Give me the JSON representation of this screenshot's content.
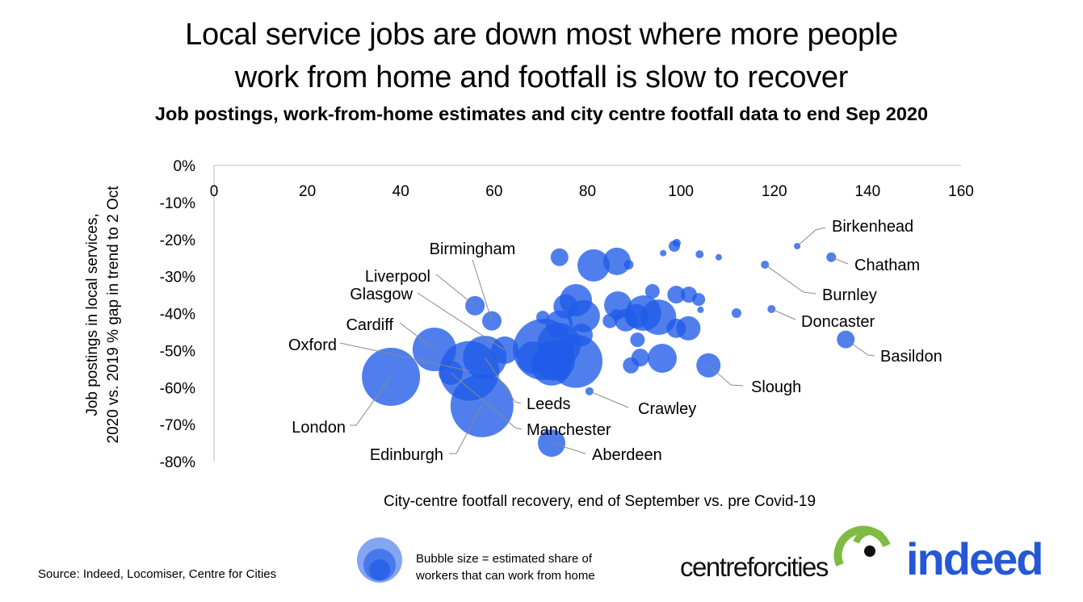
{
  "title_line1": "Local service jobs are down most where more people",
  "title_line2": "work from home and footfall is slow to recover",
  "subtitle": "Job postings, work-from-home estimates and city centre footfall data to end Sep 2020",
  "source": "Source: Indeed, Locomiser, Centre for Cities",
  "legend": {
    "line1": "Bubble size = estimated share of",
    "line2": "workers that can work from home"
  },
  "logos": {
    "centreforcities": "centreforcities",
    "indeed": "indeed"
  },
  "colors": {
    "bubble": "#1f5be8",
    "leader": "#8a8a8a",
    "cfc_green": "#7dbb42",
    "indeed_blue": "#2557d6"
  },
  "chart_data": {
    "type": "scatter",
    "subtype": "bubble",
    "xlabel": "City-centre footfall recovery, end of September vs. pre Covid-19",
    "ylabel_line1": "Job postings in local services,",
    "ylabel_line2": "2020 vs. 2019 % gap in trend to 2 Oct",
    "xlim": [
      0,
      160
    ],
    "ylim": [
      -80,
      0
    ],
    "xticks": [
      "0",
      "20",
      "40",
      "60",
      "80",
      "100",
      "120",
      "140",
      "160"
    ],
    "yticks": [
      "0%",
      "-10%",
      "-20%",
      "-30%",
      "-40%",
      "-50%",
      "-60%",
      "-70%",
      "-80%"
    ],
    "grid": false,
    "points": [
      {
        "name": "London",
        "x": 37.9,
        "y": -57.1,
        "size": 36
      },
      {
        "name": "Edinburgh",
        "x": 57.4,
        "y": -64.9,
        "size": 39
      },
      {
        "name": "Oxford",
        "x": 54.7,
        "y": -55.5,
        "size": 37
      },
      {
        "name": "Cardiff",
        "x": 47.2,
        "y": -49.7,
        "size": 27
      },
      {
        "name": "Manchester",
        "x": 50.7,
        "y": -56.0,
        "size": 15
      },
      {
        "name": "Leeds",
        "x": 58.0,
        "y": -51.9,
        "size": 27
      },
      {
        "name": "Glasgow",
        "x": 62.3,
        "y": -49.9,
        "size": 17
      },
      {
        "name": "Liverpool",
        "x": 55.9,
        "y": -37.9,
        "size": 12
      },
      {
        "name": "Birmingham",
        "x": 59.5,
        "y": -42.0,
        "size": 12
      },
      {
        "name": "Aberdeen",
        "x": 72.3,
        "y": -75.0,
        "size": 17
      },
      {
        "name": "Crawley",
        "x": 80.4,
        "y": -61.0,
        "size": 5
      },
      {
        "name": "Slough",
        "x": 105.9,
        "y": -54.0,
        "size": 15
      },
      {
        "name": "Basildon",
        "x": 135.3,
        "y": -47.0,
        "size": 11
      },
      {
        "name": "Doncaster",
        "x": 119.4,
        "y": -38.8,
        "size": 5
      },
      {
        "name": "Burnley",
        "x": 118.0,
        "y": -26.8,
        "size": 5
      },
      {
        "name": "Birkenhead",
        "x": 124.9,
        "y": -21.8,
        "size": 4
      },
      {
        "name": "Chatham",
        "x": 132.2,
        "y": -24.8,
        "size": 6
      },
      {
        "x": 74.0,
        "y": -24.8,
        "size": 11
      },
      {
        "x": 81.3,
        "y": -27.0,
        "size": 20
      },
      {
        "x": 86.3,
        "y": -25.9,
        "size": 17
      },
      {
        "x": 88.8,
        "y": -26.8,
        "size": 6
      },
      {
        "x": 98.6,
        "y": -21.8,
        "size": 7
      },
      {
        "x": 99.1,
        "y": -20.9,
        "size": 5
      },
      {
        "x": 96.2,
        "y": -23.7,
        "size": 4
      },
      {
        "x": 104.0,
        "y": -24.0,
        "size": 5
      },
      {
        "x": 108.1,
        "y": -24.8,
        "size": 4
      },
      {
        "x": 77.5,
        "y": -36.4,
        "size": 20
      },
      {
        "x": 75.3,
        "y": -38.1,
        "size": 15
      },
      {
        "x": 79.2,
        "y": -40.7,
        "size": 20
      },
      {
        "x": 70.4,
        "y": -41.0,
        "size": 8
      },
      {
        "x": 73.9,
        "y": -42.9,
        "size": 17
      },
      {
        "x": 78.7,
        "y": -45.8,
        "size": 14
      },
      {
        "x": 70.6,
        "y": -49.7,
        "size": 38
      },
      {
        "x": 73.9,
        "y": -48.4,
        "size": 27
      },
      {
        "x": 77.5,
        "y": -52.9,
        "size": 33
      },
      {
        "x": 73.0,
        "y": -52.7,
        "size": 25
      },
      {
        "x": 68.3,
        "y": -51.9,
        "size": 20
      },
      {
        "x": 72.3,
        "y": -54.0,
        "size": 25
      },
      {
        "x": 86.5,
        "y": -37.7,
        "size": 17
      },
      {
        "x": 93.9,
        "y": -34.0,
        "size": 9
      },
      {
        "x": 99.0,
        "y": -34.9,
        "size": 11
      },
      {
        "x": 101.7,
        "y": -34.9,
        "size": 10
      },
      {
        "x": 103.8,
        "y": -36.2,
        "size": 8
      },
      {
        "x": 104.2,
        "y": -39.0,
        "size": 4
      },
      {
        "x": 92.0,
        "y": -39.9,
        "size": 22
      },
      {
        "x": 95.2,
        "y": -41.0,
        "size": 22
      },
      {
        "x": 90.5,
        "y": -40.7,
        "size": 15
      },
      {
        "x": 88.2,
        "y": -41.8,
        "size": 14
      },
      {
        "x": 84.8,
        "y": -42.0,
        "size": 9
      },
      {
        "x": 86.2,
        "y": -40.3,
        "size": 7
      },
      {
        "x": 99.0,
        "y": -44.0,
        "size": 12
      },
      {
        "x": 101.6,
        "y": -44.0,
        "size": 15
      },
      {
        "x": 90.7,
        "y": -47.1,
        "size": 9
      },
      {
        "x": 91.3,
        "y": -51.9,
        "size": 11
      },
      {
        "x": 89.3,
        "y": -54.0,
        "size": 10
      },
      {
        "x": 96.0,
        "y": -52.1,
        "size": 18
      },
      {
        "x": 111.9,
        "y": -39.9,
        "size": 6
      }
    ]
  }
}
